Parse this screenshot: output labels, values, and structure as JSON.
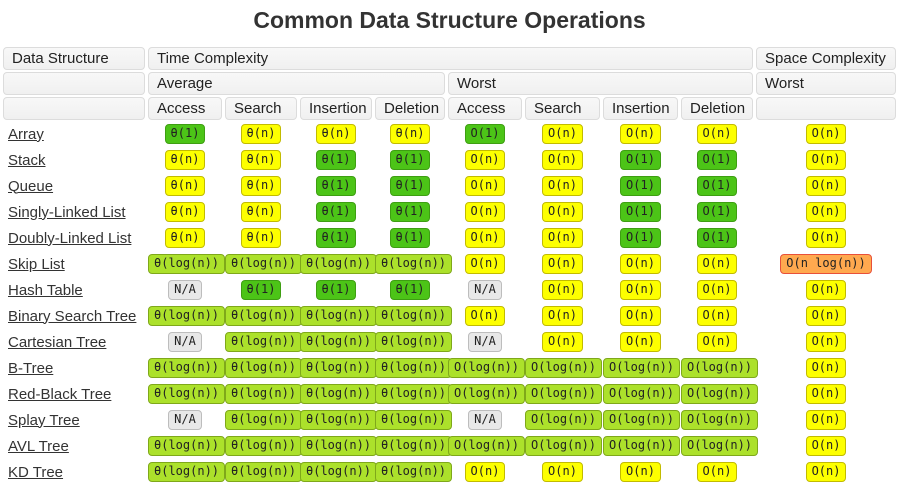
{
  "title": "Common Data Structure Operations",
  "colors": {
    "green": {
      "bg": "#4CC417",
      "border": "#3E9E12"
    },
    "yellow": {
      "bg": "#FDFF00",
      "border": "#C2BB00"
    },
    "yellowgreen": {
      "bg": "#ACE12B",
      "border": "#7FA81A"
    },
    "orange": {
      "bg": "#FFA94F",
      "border": "#E8503A"
    },
    "na": {
      "bg": "#E8E8E8",
      "border": "#BDBDBD"
    }
  },
  "table": {
    "headers": {
      "data_structure": "Data Structure",
      "time_complexity": "Time Complexity",
      "space_complexity": "Space Complexity",
      "average": "Average",
      "worst": "Worst",
      "space_worst": "Worst",
      "ops": [
        "Access",
        "Search",
        "Insertion",
        "Deletion"
      ]
    },
    "rows": [
      {
        "name": "Array",
        "avg": [
          {
            "text": "θ(1)",
            "level": "green"
          },
          {
            "text": "θ(n)",
            "level": "yellow"
          },
          {
            "text": "θ(n)",
            "level": "yellow"
          },
          {
            "text": "θ(n)",
            "level": "yellow"
          }
        ],
        "worst": [
          {
            "text": "O(1)",
            "level": "green"
          },
          {
            "text": "O(n)",
            "level": "yellow"
          },
          {
            "text": "O(n)",
            "level": "yellow"
          },
          {
            "text": "O(n)",
            "level": "yellow"
          }
        ],
        "space": {
          "text": "O(n)",
          "level": "yellow"
        }
      },
      {
        "name": "Stack",
        "avg": [
          {
            "text": "θ(n)",
            "level": "yellow"
          },
          {
            "text": "θ(n)",
            "level": "yellow"
          },
          {
            "text": "θ(1)",
            "level": "green"
          },
          {
            "text": "θ(1)",
            "level": "green"
          }
        ],
        "worst": [
          {
            "text": "O(n)",
            "level": "yellow"
          },
          {
            "text": "O(n)",
            "level": "yellow"
          },
          {
            "text": "O(1)",
            "level": "green"
          },
          {
            "text": "O(1)",
            "level": "green"
          }
        ],
        "space": {
          "text": "O(n)",
          "level": "yellow"
        }
      },
      {
        "name": "Queue",
        "avg": [
          {
            "text": "θ(n)",
            "level": "yellow"
          },
          {
            "text": "θ(n)",
            "level": "yellow"
          },
          {
            "text": "θ(1)",
            "level": "green"
          },
          {
            "text": "θ(1)",
            "level": "green"
          }
        ],
        "worst": [
          {
            "text": "O(n)",
            "level": "yellow"
          },
          {
            "text": "O(n)",
            "level": "yellow"
          },
          {
            "text": "O(1)",
            "level": "green"
          },
          {
            "text": "O(1)",
            "level": "green"
          }
        ],
        "space": {
          "text": "O(n)",
          "level": "yellow"
        }
      },
      {
        "name": "Singly-Linked List",
        "avg": [
          {
            "text": "θ(n)",
            "level": "yellow"
          },
          {
            "text": "θ(n)",
            "level": "yellow"
          },
          {
            "text": "θ(1)",
            "level": "green"
          },
          {
            "text": "θ(1)",
            "level": "green"
          }
        ],
        "worst": [
          {
            "text": "O(n)",
            "level": "yellow"
          },
          {
            "text": "O(n)",
            "level": "yellow"
          },
          {
            "text": "O(1)",
            "level": "green"
          },
          {
            "text": "O(1)",
            "level": "green"
          }
        ],
        "space": {
          "text": "O(n)",
          "level": "yellow"
        }
      },
      {
        "name": "Doubly-Linked List",
        "avg": [
          {
            "text": "θ(n)",
            "level": "yellow"
          },
          {
            "text": "θ(n)",
            "level": "yellow"
          },
          {
            "text": "θ(1)",
            "level": "green"
          },
          {
            "text": "θ(1)",
            "level": "green"
          }
        ],
        "worst": [
          {
            "text": "O(n)",
            "level": "yellow"
          },
          {
            "text": "O(n)",
            "level": "yellow"
          },
          {
            "text": "O(1)",
            "level": "green"
          },
          {
            "text": "O(1)",
            "level": "green"
          }
        ],
        "space": {
          "text": "O(n)",
          "level": "yellow"
        }
      },
      {
        "name": "Skip List",
        "avg": [
          {
            "text": "θ(log(n))",
            "level": "yellowgreen"
          },
          {
            "text": "θ(log(n))",
            "level": "yellowgreen"
          },
          {
            "text": "θ(log(n))",
            "level": "yellowgreen"
          },
          {
            "text": "θ(log(n))",
            "level": "yellowgreen"
          }
        ],
        "worst": [
          {
            "text": "O(n)",
            "level": "yellow"
          },
          {
            "text": "O(n)",
            "level": "yellow"
          },
          {
            "text": "O(n)",
            "level": "yellow"
          },
          {
            "text": "O(n)",
            "level": "yellow"
          }
        ],
        "space": {
          "text": "O(n log(n))",
          "level": "orange"
        }
      },
      {
        "name": "Hash Table",
        "avg": [
          {
            "text": "N/A",
            "level": "na"
          },
          {
            "text": "θ(1)",
            "level": "green"
          },
          {
            "text": "θ(1)",
            "level": "green"
          },
          {
            "text": "θ(1)",
            "level": "green"
          }
        ],
        "worst": [
          {
            "text": "N/A",
            "level": "na"
          },
          {
            "text": "O(n)",
            "level": "yellow"
          },
          {
            "text": "O(n)",
            "level": "yellow"
          },
          {
            "text": "O(n)",
            "level": "yellow"
          }
        ],
        "space": {
          "text": "O(n)",
          "level": "yellow"
        }
      },
      {
        "name": "Binary Search Tree",
        "avg": [
          {
            "text": "θ(log(n))",
            "level": "yellowgreen"
          },
          {
            "text": "θ(log(n))",
            "level": "yellowgreen"
          },
          {
            "text": "θ(log(n))",
            "level": "yellowgreen"
          },
          {
            "text": "θ(log(n))",
            "level": "yellowgreen"
          }
        ],
        "worst": [
          {
            "text": "O(n)",
            "level": "yellow"
          },
          {
            "text": "O(n)",
            "level": "yellow"
          },
          {
            "text": "O(n)",
            "level": "yellow"
          },
          {
            "text": "O(n)",
            "level": "yellow"
          }
        ],
        "space": {
          "text": "O(n)",
          "level": "yellow"
        }
      },
      {
        "name": "Cartesian Tree",
        "avg": [
          {
            "text": "N/A",
            "level": "na"
          },
          {
            "text": "θ(log(n))",
            "level": "yellowgreen"
          },
          {
            "text": "θ(log(n))",
            "level": "yellowgreen"
          },
          {
            "text": "θ(log(n))",
            "level": "yellowgreen"
          }
        ],
        "worst": [
          {
            "text": "N/A",
            "level": "na"
          },
          {
            "text": "O(n)",
            "level": "yellow"
          },
          {
            "text": "O(n)",
            "level": "yellow"
          },
          {
            "text": "O(n)",
            "level": "yellow"
          }
        ],
        "space": {
          "text": "O(n)",
          "level": "yellow"
        }
      },
      {
        "name": "B-Tree",
        "avg": [
          {
            "text": "θ(log(n))",
            "level": "yellowgreen"
          },
          {
            "text": "θ(log(n))",
            "level": "yellowgreen"
          },
          {
            "text": "θ(log(n))",
            "level": "yellowgreen"
          },
          {
            "text": "θ(log(n))",
            "level": "yellowgreen"
          }
        ],
        "worst": [
          {
            "text": "O(log(n))",
            "level": "yellowgreen"
          },
          {
            "text": "O(log(n))",
            "level": "yellowgreen"
          },
          {
            "text": "O(log(n))",
            "level": "yellowgreen"
          },
          {
            "text": "O(log(n))",
            "level": "yellowgreen"
          }
        ],
        "space": {
          "text": "O(n)",
          "level": "yellow"
        }
      },
      {
        "name": "Red-Black Tree",
        "avg": [
          {
            "text": "θ(log(n))",
            "level": "yellowgreen"
          },
          {
            "text": "θ(log(n))",
            "level": "yellowgreen"
          },
          {
            "text": "θ(log(n))",
            "level": "yellowgreen"
          },
          {
            "text": "θ(log(n))",
            "level": "yellowgreen"
          }
        ],
        "worst": [
          {
            "text": "O(log(n))",
            "level": "yellowgreen"
          },
          {
            "text": "O(log(n))",
            "level": "yellowgreen"
          },
          {
            "text": "O(log(n))",
            "level": "yellowgreen"
          },
          {
            "text": "O(log(n))",
            "level": "yellowgreen"
          }
        ],
        "space": {
          "text": "O(n)",
          "level": "yellow"
        }
      },
      {
        "name": "Splay Tree",
        "avg": [
          {
            "text": "N/A",
            "level": "na"
          },
          {
            "text": "θ(log(n))",
            "level": "yellowgreen"
          },
          {
            "text": "θ(log(n))",
            "level": "yellowgreen"
          },
          {
            "text": "θ(log(n))",
            "level": "yellowgreen"
          }
        ],
        "worst": [
          {
            "text": "N/A",
            "level": "na"
          },
          {
            "text": "O(log(n))",
            "level": "yellowgreen"
          },
          {
            "text": "O(log(n))",
            "level": "yellowgreen"
          },
          {
            "text": "O(log(n))",
            "level": "yellowgreen"
          }
        ],
        "space": {
          "text": "O(n)",
          "level": "yellow"
        }
      },
      {
        "name": "AVL Tree",
        "avg": [
          {
            "text": "θ(log(n))",
            "level": "yellowgreen"
          },
          {
            "text": "θ(log(n))",
            "level": "yellowgreen"
          },
          {
            "text": "θ(log(n))",
            "level": "yellowgreen"
          },
          {
            "text": "θ(log(n))",
            "level": "yellowgreen"
          }
        ],
        "worst": [
          {
            "text": "O(log(n))",
            "level": "yellowgreen"
          },
          {
            "text": "O(log(n))",
            "level": "yellowgreen"
          },
          {
            "text": "O(log(n))",
            "level": "yellowgreen"
          },
          {
            "text": "O(log(n))",
            "level": "yellowgreen"
          }
        ],
        "space": {
          "text": "O(n)",
          "level": "yellow"
        }
      },
      {
        "name": "KD Tree",
        "avg": [
          {
            "text": "θ(log(n))",
            "level": "yellowgreen"
          },
          {
            "text": "θ(log(n))",
            "level": "yellowgreen"
          },
          {
            "text": "θ(log(n))",
            "level": "yellowgreen"
          },
          {
            "text": "θ(log(n))",
            "level": "yellowgreen"
          }
        ],
        "worst": [
          {
            "text": "O(n)",
            "level": "yellow"
          },
          {
            "text": "O(n)",
            "level": "yellow"
          },
          {
            "text": "O(n)",
            "level": "yellow"
          },
          {
            "text": "O(n)",
            "level": "yellow"
          }
        ],
        "space": {
          "text": "O(n)",
          "level": "yellow"
        }
      }
    ]
  }
}
